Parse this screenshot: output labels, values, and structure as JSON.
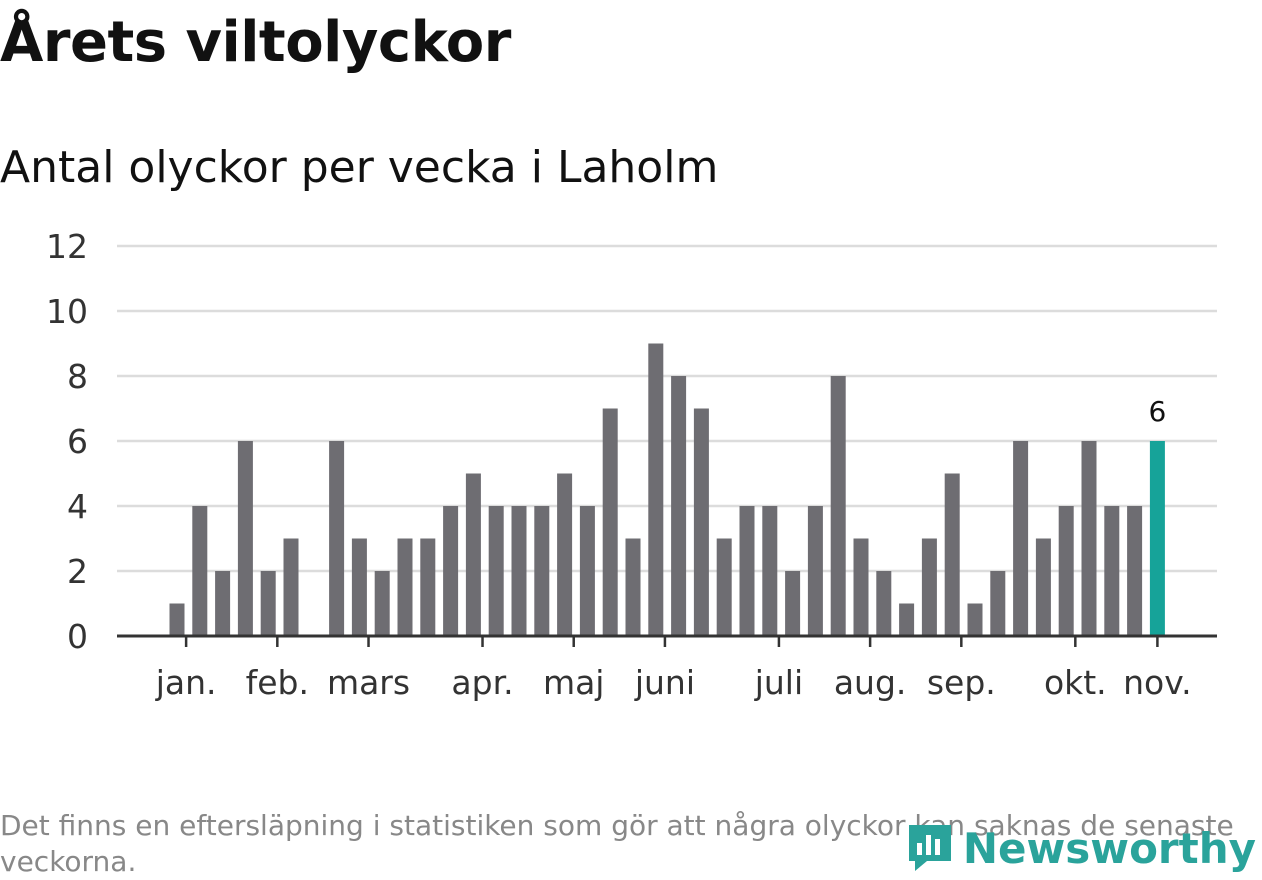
{
  "header": {
    "title": "Årets viltolyckor",
    "subtitle": "Antal olyckor per vecka i Laholm"
  },
  "footnote": "Det finns en eftersläpning i statistiken som gör att några olyckor kan saknas de senaste veckorna.",
  "brand": {
    "name": "Newsworthy",
    "icon": "newsworthy-logo-icon"
  },
  "colors": {
    "bar": "#6e6d72",
    "highlight": "#16a399",
    "grid": "#dcdcdc",
    "axis": "#333333"
  },
  "chart_data": {
    "type": "bar",
    "title": "Antal olyckor per vecka i Laholm",
    "xlabel": "",
    "ylabel": "",
    "ylim": [
      0,
      12
    ],
    "yticks": [
      0,
      2,
      4,
      6,
      8,
      10,
      12
    ],
    "grid": true,
    "weeks": [
      1,
      2,
      3,
      4,
      5,
      6,
      7,
      8,
      9,
      10,
      11,
      12,
      13,
      14,
      15,
      16,
      17,
      18,
      19,
      20,
      21,
      22,
      23,
      24,
      25,
      26,
      27,
      28,
      29,
      30,
      31,
      32,
      33,
      34,
      35,
      36,
      37,
      38,
      39,
      40,
      41,
      42,
      43,
      44
    ],
    "values": [
      1,
      4,
      2,
      6,
      2,
      3,
      0,
      6,
      3,
      2,
      3,
      3,
      4,
      5,
      4,
      4,
      4,
      5,
      4,
      7,
      3,
      9,
      8,
      7,
      3,
      4,
      4,
      2,
      4,
      8,
      3,
      2,
      1,
      3,
      5,
      1,
      2,
      6,
      3,
      4,
      6,
      4,
      4,
      6
    ],
    "highlight_index": 43,
    "highlight_label": "6",
    "month_ticks": [
      {
        "label": "jan.",
        "at_week": 1.4
      },
      {
        "label": "feb.",
        "at_week": 5.4
      },
      {
        "label": "mars",
        "at_week": 9.4
      },
      {
        "label": "apr.",
        "at_week": 14.4
      },
      {
        "label": "maj",
        "at_week": 18.4
      },
      {
        "label": "juni",
        "at_week": 22.4
      },
      {
        "label": "juli",
        "at_week": 27.4
      },
      {
        "label": "aug.",
        "at_week": 31.4
      },
      {
        "label": "sep.",
        "at_week": 35.4
      },
      {
        "label": "okt.",
        "at_week": 40.4
      },
      {
        "label": "nov.",
        "at_week": 44.0
      }
    ]
  }
}
